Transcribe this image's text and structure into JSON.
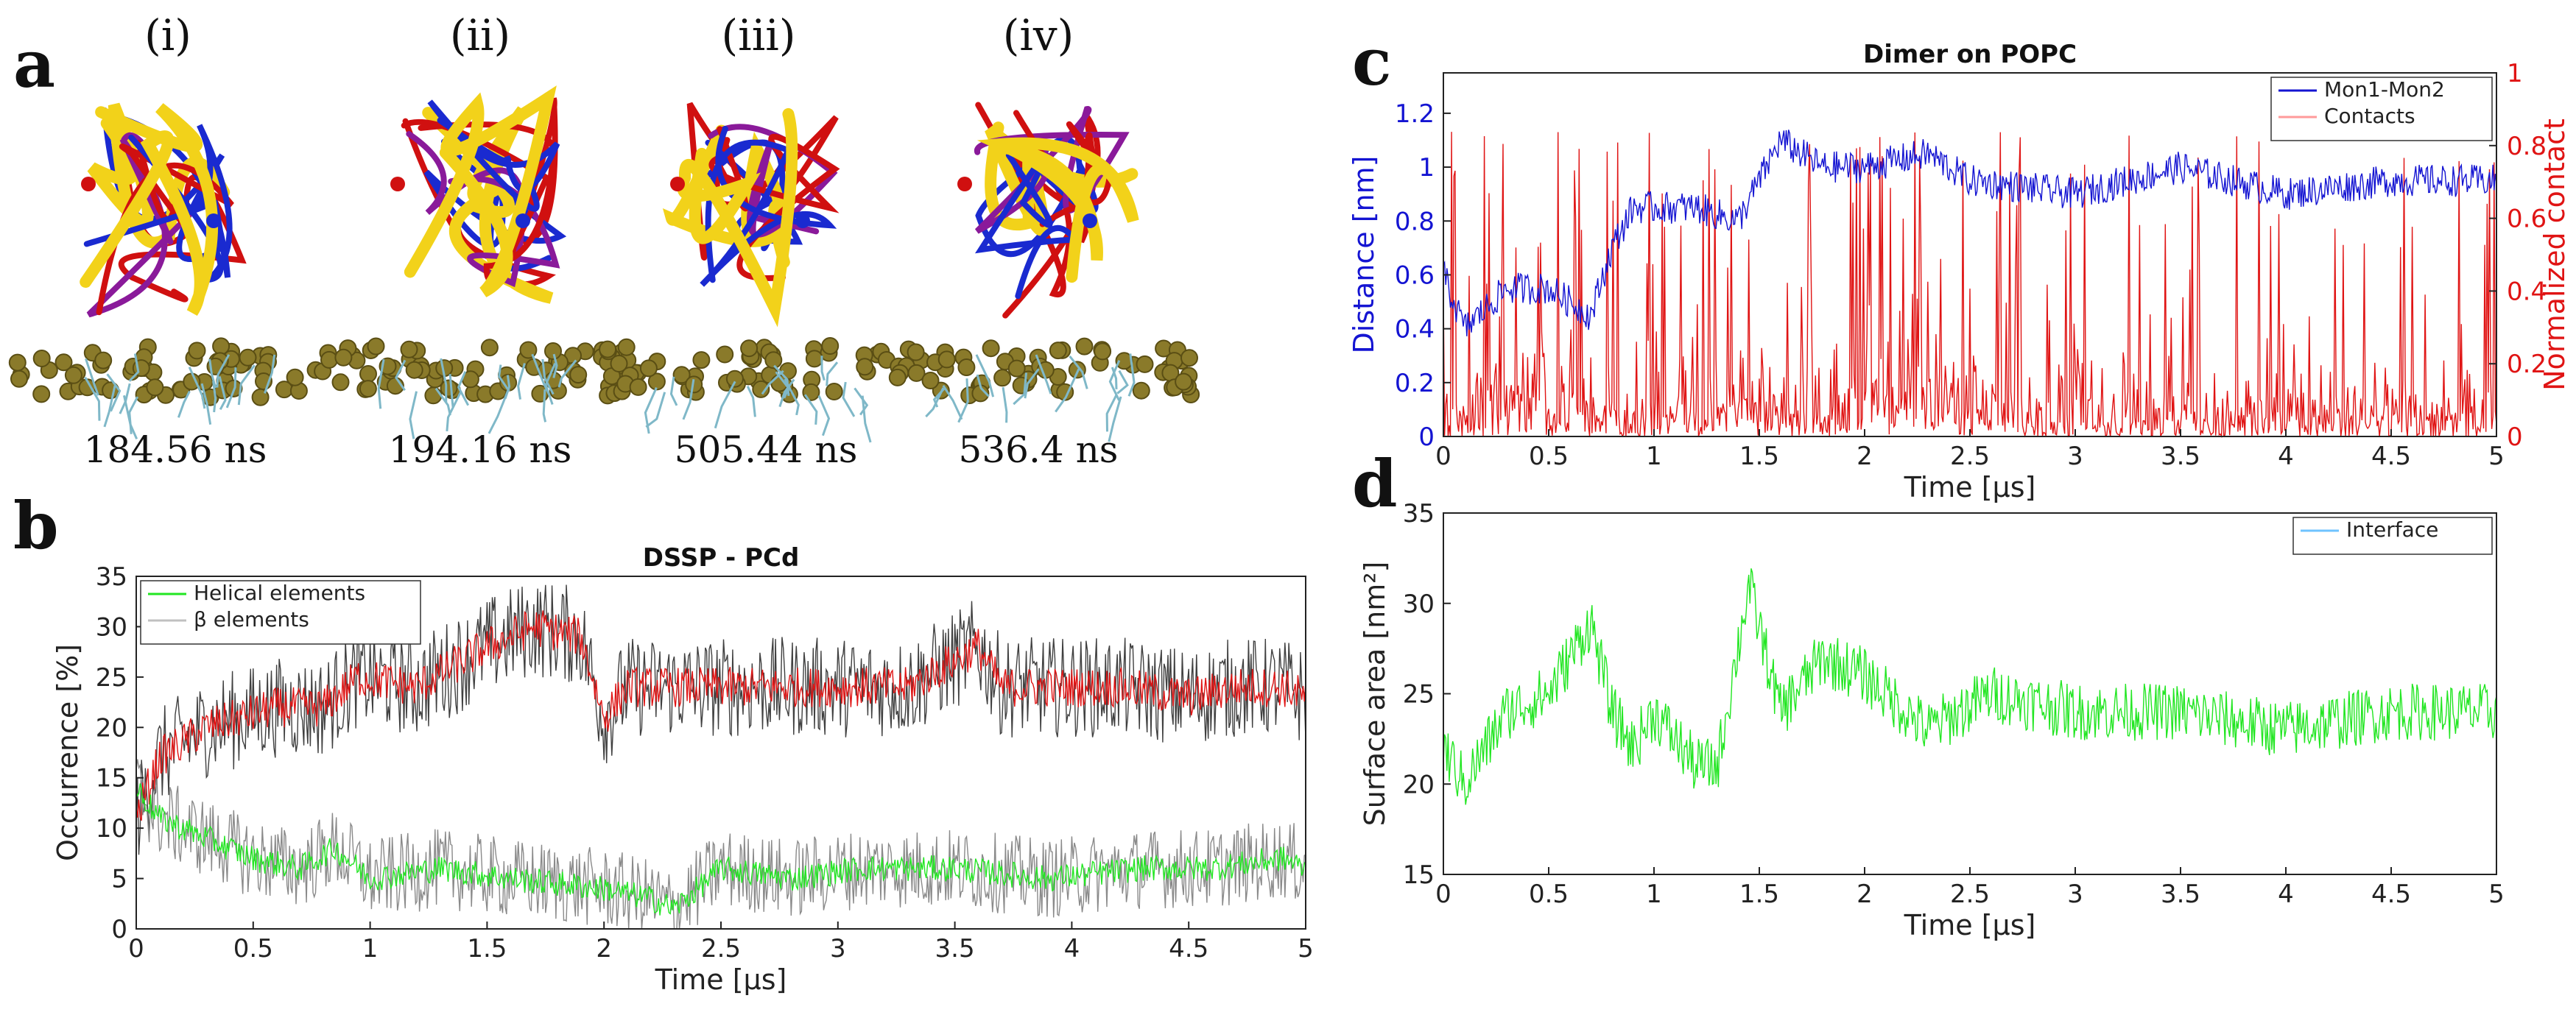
{
  "panels": {
    "a": {
      "letter": "a",
      "snapshots": [
        {
          "label": "(i)",
          "time": "184.56 ns"
        },
        {
          "label": "(ii)",
          "time": "194.16 ns"
        },
        {
          "label": "(iii)",
          "time": "505.44 ns"
        },
        {
          "label": "(iv)",
          "time": "536.4 ns"
        }
      ]
    },
    "b": {
      "letter": "b"
    },
    "c": {
      "letter": "c"
    },
    "d": {
      "letter": "d"
    }
  },
  "colors": {
    "blue": "#1414d2",
    "red": "#e01414",
    "green": "#22e622",
    "gray": "#8a8a8a",
    "dark": "#404040",
    "lightred": "#ff9a9a",
    "lightgreen": "#8af08a",
    "lightblue": "#6fc3ff",
    "bead": "#8a7a2a"
  },
  "chart_data": [
    {
      "id": "b",
      "type": "line",
      "title": "DSSP - PCd",
      "xlabel": "Time [μs]",
      "ylabel": "Occurrence [%]",
      "xlim": [
        0,
        5
      ],
      "ylim": [
        0,
        35
      ],
      "xticks": [
        0,
        0.5,
        1,
        1.5,
        2,
        2.5,
        3,
        3.5,
        4,
        4.5,
        5
      ],
      "xtick_labels": [
        "0",
        "0.5",
        "1",
        "1.5",
        "2",
        "2.5",
        "3",
        "3.5",
        "4",
        "4.5",
        "5"
      ],
      "yticks": [
        0,
        5,
        10,
        15,
        20,
        25,
        30,
        35
      ],
      "ytick_labels": [
        "0",
        "5",
        "10",
        "15",
        "20",
        "25",
        "30",
        "35"
      ],
      "legend": [
        {
          "label": "Helical elements",
          "color": "#22e622"
        },
        {
          "label": "β elements",
          "color": "#c0c0c0"
        }
      ],
      "legend_position": "top-left",
      "series": [
        {
          "name": "β elements (raw)",
          "color": "#404040",
          "x": [
            0,
            0.1,
            0.3,
            0.6,
            0.8,
            0.95,
            1.2,
            1.5,
            1.7,
            1.9,
            2.0,
            2.1,
            2.4,
            2.8,
            3.0,
            3.3,
            3.6,
            3.7,
            3.9,
            4.2,
            4.5,
            4.7,
            4.9,
            5.0
          ],
          "values": [
            11,
            17,
            20,
            22,
            22,
            25,
            24,
            28,
            30,
            29,
            21,
            24,
            24,
            24,
            24,
            24,
            28,
            24,
            24,
            24,
            23,
            24,
            24,
            23
          ],
          "noise": 5
        },
        {
          "name": "β elements",
          "color": "#e01414",
          "x": [
            0,
            0.1,
            0.3,
            0.6,
            0.8,
            0.95,
            1.2,
            1.5,
            1.7,
            1.9,
            2.0,
            2.1,
            2.4,
            2.8,
            3.0,
            3.3,
            3.6,
            3.7,
            3.9,
            4.2,
            4.5,
            4.7,
            4.9,
            5.0
          ],
          "values": [
            11,
            17,
            20,
            22,
            22,
            25,
            24,
            28,
            30,
            29,
            21,
            24,
            24,
            24,
            24,
            24,
            28,
            24,
            24,
            24,
            23,
            24,
            24,
            23
          ],
          "noise": 2
        },
        {
          "name": "Helical elements (raw)",
          "color": "#8a8a8a",
          "x": [
            0,
            0.1,
            0.3,
            0.5,
            0.7,
            0.85,
            1.0,
            1.3,
            1.6,
            2.0,
            2.2,
            2.3,
            2.5,
            2.8,
            3.1,
            3.5,
            3.9,
            4.3,
            4.6,
            4.9,
            5.0
          ],
          "values": [
            14,
            11,
            9,
            7,
            6,
            8,
            5,
            6,
            5,
            4,
            3,
            2,
            6,
            5,
            6,
            6,
            5,
            6,
            6,
            7,
            6
          ],
          "noise": 4
        },
        {
          "name": "Helical elements",
          "color": "#22e622",
          "x": [
            0,
            0.1,
            0.3,
            0.5,
            0.7,
            0.85,
            1.0,
            1.3,
            1.6,
            2.0,
            2.2,
            2.3,
            2.5,
            2.8,
            3.1,
            3.5,
            3.9,
            4.3,
            4.6,
            4.9,
            5.0
          ],
          "values": [
            14,
            11,
            9,
            7,
            6,
            8,
            5,
            6,
            5,
            4,
            3,
            2,
            6,
            5,
            6,
            6,
            5,
            6,
            6,
            7,
            6
          ],
          "noise": 1.3
        }
      ]
    },
    {
      "id": "c",
      "type": "line",
      "title": "Dimer on POPC",
      "xlabel": "Time [μs]",
      "ylabel": "Distance [nm]",
      "ylabel_right": "Normalized contact",
      "xlim": [
        0,
        5
      ],
      "ylim": [
        0,
        1.35
      ],
      "ylim_right": [
        0,
        1
      ],
      "xticks": [
        0,
        0.5,
        1,
        1.5,
        2,
        2.5,
        3,
        3.5,
        4,
        4.5,
        5
      ],
      "xtick_labels": [
        "0",
        "0.5",
        "1",
        "1.5",
        "2",
        "2.5",
        "3",
        "3.5",
        "4",
        "4.5",
        "5"
      ],
      "yticks": [
        0,
        0.2,
        0.4,
        0.6,
        0.8,
        1,
        1.2
      ],
      "ytick_labels": [
        "0",
        "0.2",
        "0.4",
        "0.6",
        "0.8",
        "1",
        "1.2"
      ],
      "yticks_right": [
        0,
        0.2,
        0.4,
        0.6,
        0.8,
        1
      ],
      "ytick_labels_right": [
        "0",
        "0.2",
        "0.4",
        "0.6",
        "0.8",
        "1"
      ],
      "legend": [
        {
          "label": "Mon1-Mon2",
          "color": "#1414d2"
        },
        {
          "label": "Contacts",
          "color": "#ff9a9a"
        }
      ],
      "legend_position": "top-right",
      "series": [
        {
          "name": "Contacts",
          "axis": "right",
          "color": "#e01414",
          "x": [
            0,
            0.2,
            0.4,
            0.6,
            0.8,
            1.0,
            1.5,
            2.0,
            2.3,
            2.5,
            3.0,
            3.5,
            4.0,
            4.5,
            5.0
          ],
          "values": [
            0.15,
            0.25,
            0.35,
            0.3,
            0.2,
            0.2,
            0.25,
            0.25,
            0.4,
            0.25,
            0.2,
            0.2,
            0.18,
            0.18,
            0.15
          ],
          "noise": 0.2
        },
        {
          "name": "Mon1-Mon2",
          "axis": "left",
          "color": "#1414d2",
          "x": [
            0,
            0.1,
            0.3,
            0.5,
            0.7,
            0.8,
            0.9,
            1.2,
            1.4,
            1.5,
            1.6,
            1.8,
            2.0,
            2.3,
            2.5,
            3.0,
            3.5,
            4.0,
            4.5,
            5.0
          ],
          "values": [
            0.6,
            0.4,
            0.55,
            0.55,
            0.45,
            0.7,
            0.85,
            0.85,
            0.8,
            0.95,
            1.1,
            1.0,
            1.0,
            1.05,
            0.95,
            0.9,
            1.0,
            0.9,
            0.95,
            0.95
          ],
          "noise": 0.06
        }
      ]
    },
    {
      "id": "d",
      "type": "line",
      "title": "",
      "xlabel": "Time [μs]",
      "ylabel": "Surface area [nm²]",
      "xlim": [
        0,
        5
      ],
      "ylim": [
        15,
        35
      ],
      "xticks": [
        0,
        0.5,
        1,
        1.5,
        2,
        2.5,
        3,
        3.5,
        4,
        4.5,
        5
      ],
      "xtick_labels": [
        "0",
        "0.5",
        "1",
        "1.5",
        "2",
        "2.5",
        "3",
        "3.5",
        "4",
        "4.5",
        "5"
      ],
      "yticks": [
        15,
        20,
        25,
        30,
        35
      ],
      "ytick_labels": [
        "15",
        "20",
        "25",
        "30",
        "35"
      ],
      "legend": [
        {
          "label": "Interface",
          "color": "#6fc3ff"
        }
      ],
      "legend_position": "top-right",
      "series": [
        {
          "name": "Interface",
          "color": "#22e622",
          "x": [
            0,
            0.1,
            0.3,
            0.5,
            0.7,
            0.8,
            0.9,
            1.0,
            1.2,
            1.3,
            1.45,
            1.6,
            1.8,
            2.0,
            2.3,
            2.6,
            3.0,
            3.5,
            4.0,
            4.5,
            5.0
          ],
          "values": [
            22,
            20,
            24,
            25,
            29,
            24,
            22,
            24,
            21,
            21,
            31,
            24,
            27,
            26,
            23,
            25,
            24,
            24,
            23,
            24,
            24
          ],
          "noise": 1.6
        }
      ]
    }
  ]
}
